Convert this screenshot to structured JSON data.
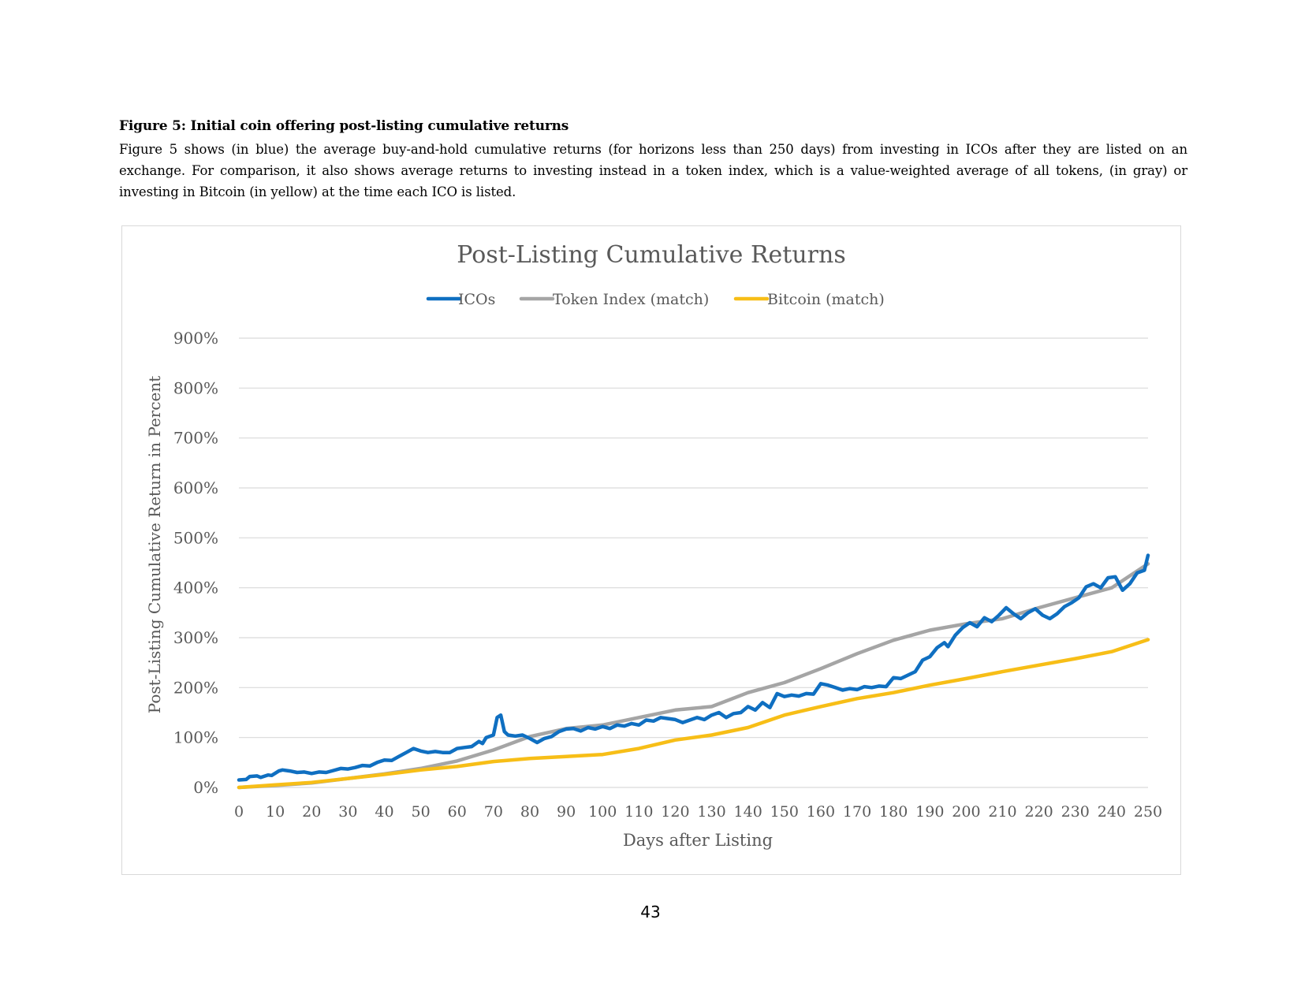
{
  "caption": {
    "title": "Figure 5: Initial coin offering post-listing cumulative returns",
    "text": "Figure 5 shows (in blue) the average buy-and-hold cumulative returns (for horizons less than 250 days) from investing in ICOs after they are listed on an exchange. For comparison, it also shows average returns to investing instead in a token index, which is a value-weighted average of all tokens, (in gray) or investing in Bitcoin (in yellow) at the time each ICO is listed."
  },
  "page_number": "43",
  "colors": {
    "icos": "#0f6fc1",
    "token_index": "#a5a5a5",
    "bitcoin": "#f7be17",
    "grid": "#d9d9d9",
    "text": "#595959"
  },
  "chart_data": {
    "type": "line",
    "title": "Post-Listing Cumulative Returns",
    "xlabel": "Days after Listing",
    "ylabel": "Post-Listing Cumulative Return in Percent",
    "xlim": [
      0,
      250
    ],
    "ylim": [
      0,
      900
    ],
    "x_ticks": [
      0,
      10,
      20,
      30,
      40,
      50,
      60,
      70,
      80,
      90,
      100,
      110,
      120,
      130,
      140,
      150,
      160,
      170,
      180,
      190,
      200,
      210,
      220,
      230,
      240,
      250
    ],
    "y_ticks": [
      0,
      100,
      200,
      300,
      400,
      500,
      600,
      700,
      800,
      900
    ],
    "y_tick_labels": [
      "0%",
      "100%",
      "200%",
      "300%",
      "400%",
      "500%",
      "600%",
      "700%",
      "800%",
      "900%"
    ],
    "grid": true,
    "legend": "top-center",
    "series": [
      {
        "name": "ICOs",
        "color_key": "icos",
        "points": [
          [
            0,
            15
          ],
          [
            2,
            16
          ],
          [
            3,
            22
          ],
          [
            5,
            23
          ],
          [
            6,
            20
          ],
          [
            8,
            25
          ],
          [
            9,
            24
          ],
          [
            11,
            33
          ],
          [
            12,
            35
          ],
          [
            14,
            33
          ],
          [
            16,
            30
          ],
          [
            18,
            31
          ],
          [
            20,
            28
          ],
          [
            22,
            31
          ],
          [
            24,
            30
          ],
          [
            26,
            34
          ],
          [
            28,
            38
          ],
          [
            30,
            37
          ],
          [
            32,
            40
          ],
          [
            34,
            44
          ],
          [
            36,
            43
          ],
          [
            38,
            50
          ],
          [
            40,
            55
          ],
          [
            42,
            54
          ],
          [
            44,
            62
          ],
          [
            46,
            70
          ],
          [
            48,
            78
          ],
          [
            50,
            73
          ],
          [
            52,
            70
          ],
          [
            54,
            72
          ],
          [
            56,
            70
          ],
          [
            58,
            70
          ],
          [
            60,
            78
          ],
          [
            62,
            80
          ],
          [
            64,
            82
          ],
          [
            66,
            92
          ],
          [
            67,
            88
          ],
          [
            68,
            100
          ],
          [
            70,
            105
          ],
          [
            71,
            140
          ],
          [
            72,
            145
          ],
          [
            73,
            112
          ],
          [
            74,
            105
          ],
          [
            76,
            103
          ],
          [
            78,
            105
          ],
          [
            80,
            98
          ],
          [
            82,
            90
          ],
          [
            84,
            98
          ],
          [
            86,
            102
          ],
          [
            88,
            112
          ],
          [
            90,
            117
          ],
          [
            92,
            118
          ],
          [
            94,
            113
          ],
          [
            96,
            120
          ],
          [
            98,
            117
          ],
          [
            100,
            122
          ],
          [
            102,
            118
          ],
          [
            104,
            125
          ],
          [
            106,
            123
          ],
          [
            108,
            128
          ],
          [
            110,
            125
          ],
          [
            112,
            135
          ],
          [
            114,
            133
          ],
          [
            116,
            140
          ],
          [
            118,
            138
          ],
          [
            120,
            136
          ],
          [
            122,
            130
          ],
          [
            124,
            135
          ],
          [
            126,
            140
          ],
          [
            128,
            136
          ],
          [
            130,
            145
          ],
          [
            132,
            150
          ],
          [
            134,
            140
          ],
          [
            136,
            148
          ],
          [
            138,
            150
          ],
          [
            140,
            162
          ],
          [
            142,
            155
          ],
          [
            144,
            170
          ],
          [
            146,
            160
          ],
          [
            148,
            188
          ],
          [
            150,
            182
          ],
          [
            152,
            185
          ],
          [
            154,
            183
          ],
          [
            156,
            188
          ],
          [
            158,
            187
          ],
          [
            160,
            208
          ],
          [
            162,
            205
          ],
          [
            164,
            200
          ],
          [
            166,
            195
          ],
          [
            168,
            198
          ],
          [
            170,
            196
          ],
          [
            172,
            202
          ],
          [
            174,
            200
          ],
          [
            176,
            203
          ],
          [
            178,
            202
          ],
          [
            180,
            220
          ],
          [
            182,
            218
          ],
          [
            184,
            225
          ],
          [
            186,
            232
          ],
          [
            188,
            255
          ],
          [
            190,
            262
          ],
          [
            192,
            280
          ],
          [
            194,
            290
          ],
          [
            195,
            282
          ],
          [
            197,
            305
          ],
          [
            199,
            320
          ],
          [
            201,
            330
          ],
          [
            203,
            322
          ],
          [
            205,
            340
          ],
          [
            207,
            332
          ],
          [
            209,
            345
          ],
          [
            211,
            360
          ],
          [
            213,
            348
          ],
          [
            215,
            338
          ],
          [
            217,
            350
          ],
          [
            219,
            358
          ],
          [
            221,
            345
          ],
          [
            223,
            338
          ],
          [
            225,
            348
          ],
          [
            227,
            362
          ],
          [
            229,
            370
          ],
          [
            231,
            380
          ],
          [
            233,
            402
          ],
          [
            235,
            408
          ],
          [
            237,
            400
          ],
          [
            239,
            420
          ],
          [
            241,
            422
          ],
          [
            243,
            395
          ],
          [
            245,
            408
          ],
          [
            247,
            430
          ],
          [
            249,
            435
          ],
          [
            250,
            465
          ]
        ]
      },
      {
        "name": "Token Index (match)",
        "color_key": "token_index",
        "points": [
          [
            0,
            0
          ],
          [
            10,
            4
          ],
          [
            20,
            9
          ],
          [
            30,
            18
          ],
          [
            40,
            27
          ],
          [
            50,
            38
          ],
          [
            60,
            53
          ],
          [
            70,
            75
          ],
          [
            80,
            102
          ],
          [
            90,
            118
          ],
          [
            100,
            125
          ],
          [
            110,
            140
          ],
          [
            120,
            155
          ],
          [
            130,
            162
          ],
          [
            140,
            190
          ],
          [
            150,
            210
          ],
          [
            160,
            238
          ],
          [
            170,
            268
          ],
          [
            180,
            295
          ],
          [
            190,
            315
          ],
          [
            200,
            328
          ],
          [
            210,
            338
          ],
          [
            220,
            360
          ],
          [
            230,
            380
          ],
          [
            240,
            400
          ],
          [
            250,
            448
          ]
        ]
      },
      {
        "name": "Bitcoin (match)",
        "color_key": "bitcoin",
        "points": [
          [
            0,
            0
          ],
          [
            10,
            5
          ],
          [
            20,
            10
          ],
          [
            30,
            18
          ],
          [
            40,
            26
          ],
          [
            50,
            35
          ],
          [
            60,
            42
          ],
          [
            70,
            52
          ],
          [
            80,
            58
          ],
          [
            90,
            62
          ],
          [
            100,
            66
          ],
          [
            110,
            78
          ],
          [
            120,
            95
          ],
          [
            130,
            105
          ],
          [
            140,
            120
          ],
          [
            150,
            145
          ],
          [
            160,
            162
          ],
          [
            170,
            178
          ],
          [
            180,
            190
          ],
          [
            190,
            205
          ],
          [
            200,
            218
          ],
          [
            210,
            232
          ],
          [
            220,
            245
          ],
          [
            230,
            258
          ],
          [
            240,
            272
          ],
          [
            250,
            296
          ]
        ]
      }
    ]
  }
}
